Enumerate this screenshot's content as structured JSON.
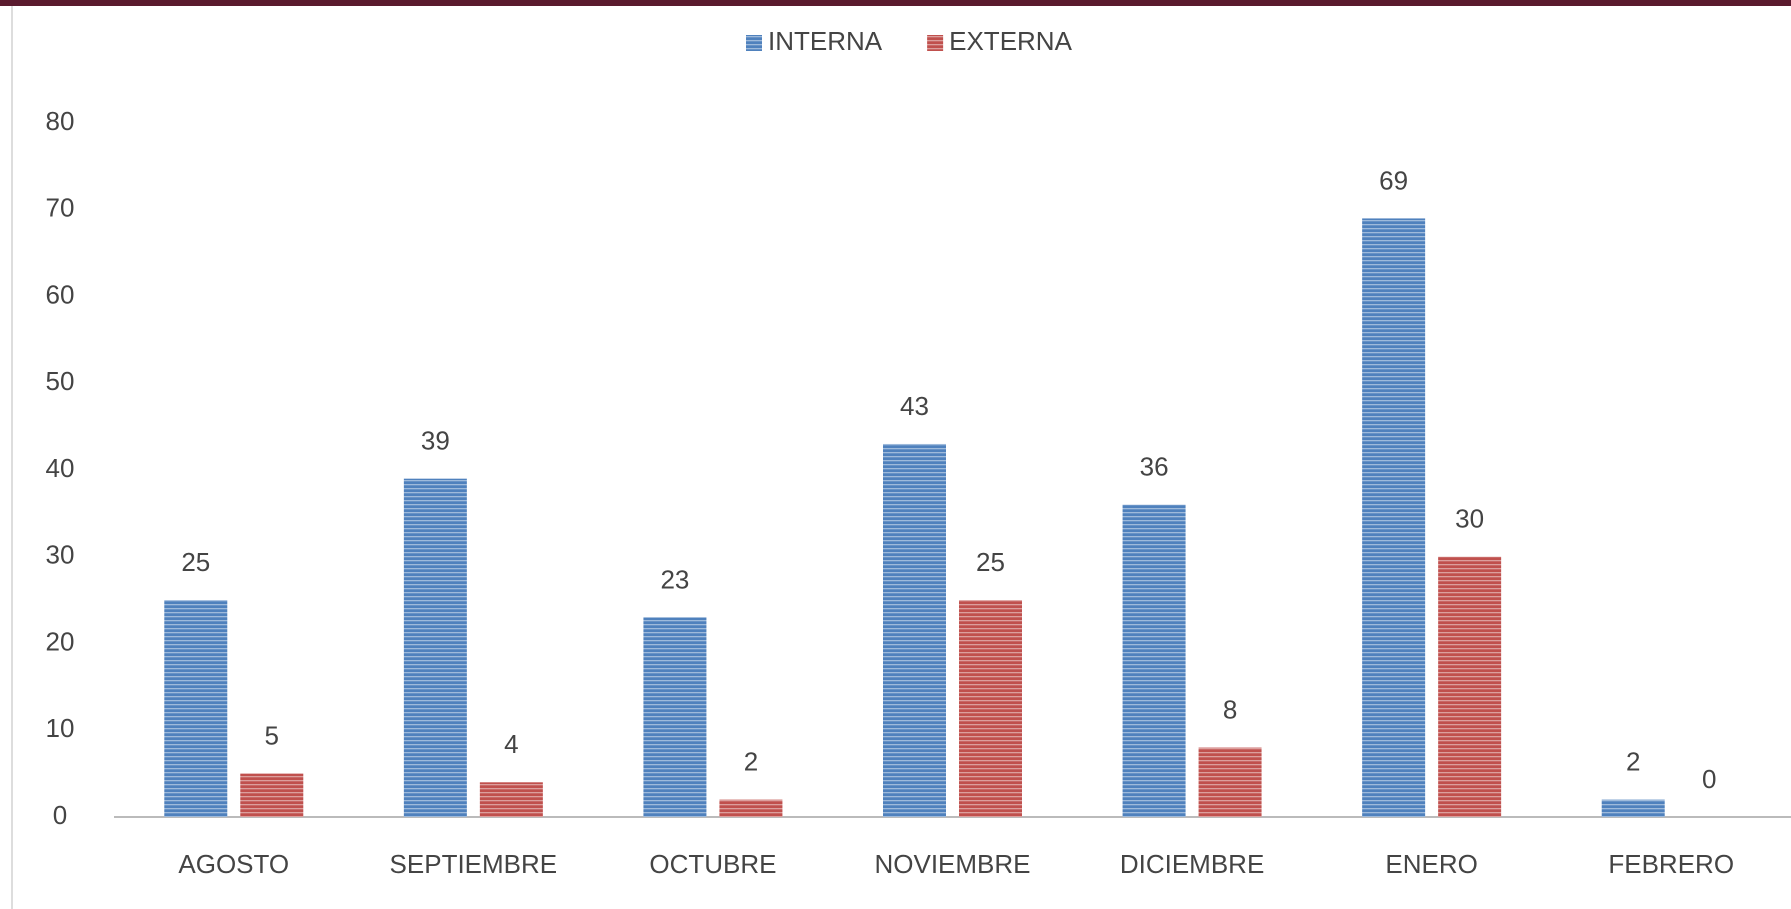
{
  "chart_data": {
    "type": "bar",
    "categories": [
      "AGOSTO",
      "SEPTIEMBRE",
      "OCTUBRE",
      "NOVIEMBRE",
      "DICIEMBRE",
      "ENERO",
      "FEBRERO"
    ],
    "series": [
      {
        "name": "INTERNA",
        "color": "#4f81bd",
        "values": [
          25,
          39,
          23,
          43,
          36,
          69,
          2
        ]
      },
      {
        "name": "EXTERNA",
        "color": "#c0504d",
        "values": [
          5,
          4,
          2,
          25,
          8,
          30,
          0
        ]
      }
    ],
    "ylim": [
      0,
      80
    ],
    "yticks": [
      0,
      10,
      20,
      30,
      40,
      50,
      60,
      70,
      80
    ],
    "grid": false,
    "legend": "top"
  }
}
